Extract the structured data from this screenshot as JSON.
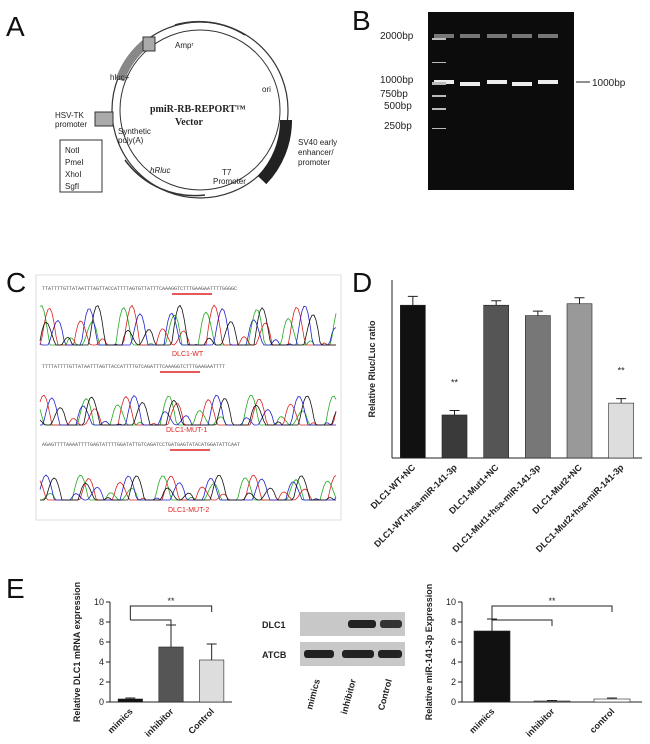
{
  "panels": {
    "A": {
      "letter": "A",
      "labels": {
        "amp": "Ampʳ",
        "hluc": "hluc+",
        "name": "pmiR-RB-REPORT™",
        "vector": "Vector",
        "ori": "ori",
        "hsv": "HSV-TK",
        "hsv2": "promoter",
        "poly": "Synthetic",
        "poly2": "poly(A)",
        "sites": [
          "NotI",
          "PmeI",
          "XhoI",
          "SgfI"
        ],
        "sv40": "SV40 early",
        "sv40b": "enhancer/",
        "sv40c": "promoter",
        "t7": "T7",
        "t7b": "Promoter",
        "hrluc": "hRluc"
      }
    },
    "B": {
      "letter": "B",
      "ladder": [
        "2000bp",
        "1000bp",
        "750bp",
        "500bp",
        "250bp"
      ],
      "band": "1000bp"
    },
    "C": {
      "letter": "C",
      "sequences": [
        "TTATTTTGTTATAATTTAGTTACCATTTTAGTGTTATTTCAAAGGTCTTTGAAGAATTTTGGGGC",
        "TTTTATTTTGTTATAATTTAGTTACCATTTTGTCAGATTTCAAAGGTCTTTGAAGAATTTT",
        "AGAGTTTTAAAATTTTGAGTATTTTGGATATTGTCAGATCCTGATGAGTATACATGGATATTCAAT"
      ],
      "names": [
        "DLC1-WT",
        "DLC1-MUT-1",
        "DLC1-MUT-2"
      ]
    },
    "D": {
      "letter": "D"
    },
    "E": {
      "letter": "E",
      "blot": {
        "rows": [
          "DLC1",
          "ATCB"
        ],
        "lanes": [
          "mimics",
          "inhibitor",
          "Control"
        ]
      }
    }
  },
  "chart_data": [
    {
      "type": "bar",
      "ylabel": "Relative Rluc/Luc ratio",
      "categories": [
        "DLC1-WT+NC",
        "DLC1-WT+hsa-miR-141-3p",
        "DLC1-Mut1+NC",
        "DLC1-Mut1+hsa-miR-141-3p",
        "DLC1-Mut2+NC",
        "DLC1-Mut2+hsa-miR-141-3p"
      ],
      "values": [
        1.03,
        0.29,
        1.03,
        0.96,
        1.04,
        0.37
      ],
      "errors": [
        0.06,
        0.03,
        0.03,
        0.03,
        0.04,
        0.03
      ],
      "colors": [
        "#111111",
        "#3a3a3a",
        "#555555",
        "#777777",
        "#999999",
        "#dddddd"
      ],
      "ylim": [
        0,
        1.2
      ],
      "annotations": [
        "**",
        "**"
      ]
    },
    {
      "type": "bar",
      "ylabel": "Relative DLC1 mRNA expression",
      "categories": [
        "mimics",
        "inhibitor",
        "Control"
      ],
      "values": [
        0.3,
        5.5,
        4.2
      ],
      "errors": [
        0.1,
        2.2,
        1.6
      ],
      "colors": [
        "#111111",
        "#555555",
        "#dddddd"
      ],
      "ylim": [
        0,
        10
      ],
      "yticks": [
        0,
        2,
        4,
        6,
        8,
        10
      ],
      "annotations": [
        "**"
      ]
    },
    {
      "type": "bar",
      "ylabel": "Relative miR-141-3p Expression",
      "categories": [
        "mimics",
        "inhibitor",
        "control"
      ],
      "values": [
        7.1,
        0.1,
        0.3
      ],
      "errors": [
        1.2,
        0.05,
        0.1
      ],
      "colors": [
        "#111111",
        "#888888",
        "#ffffff"
      ],
      "ylim": [
        0,
        10
      ],
      "yticks": [
        0,
        2,
        4,
        6,
        8,
        10
      ],
      "annotations": [
        "**"
      ]
    }
  ]
}
